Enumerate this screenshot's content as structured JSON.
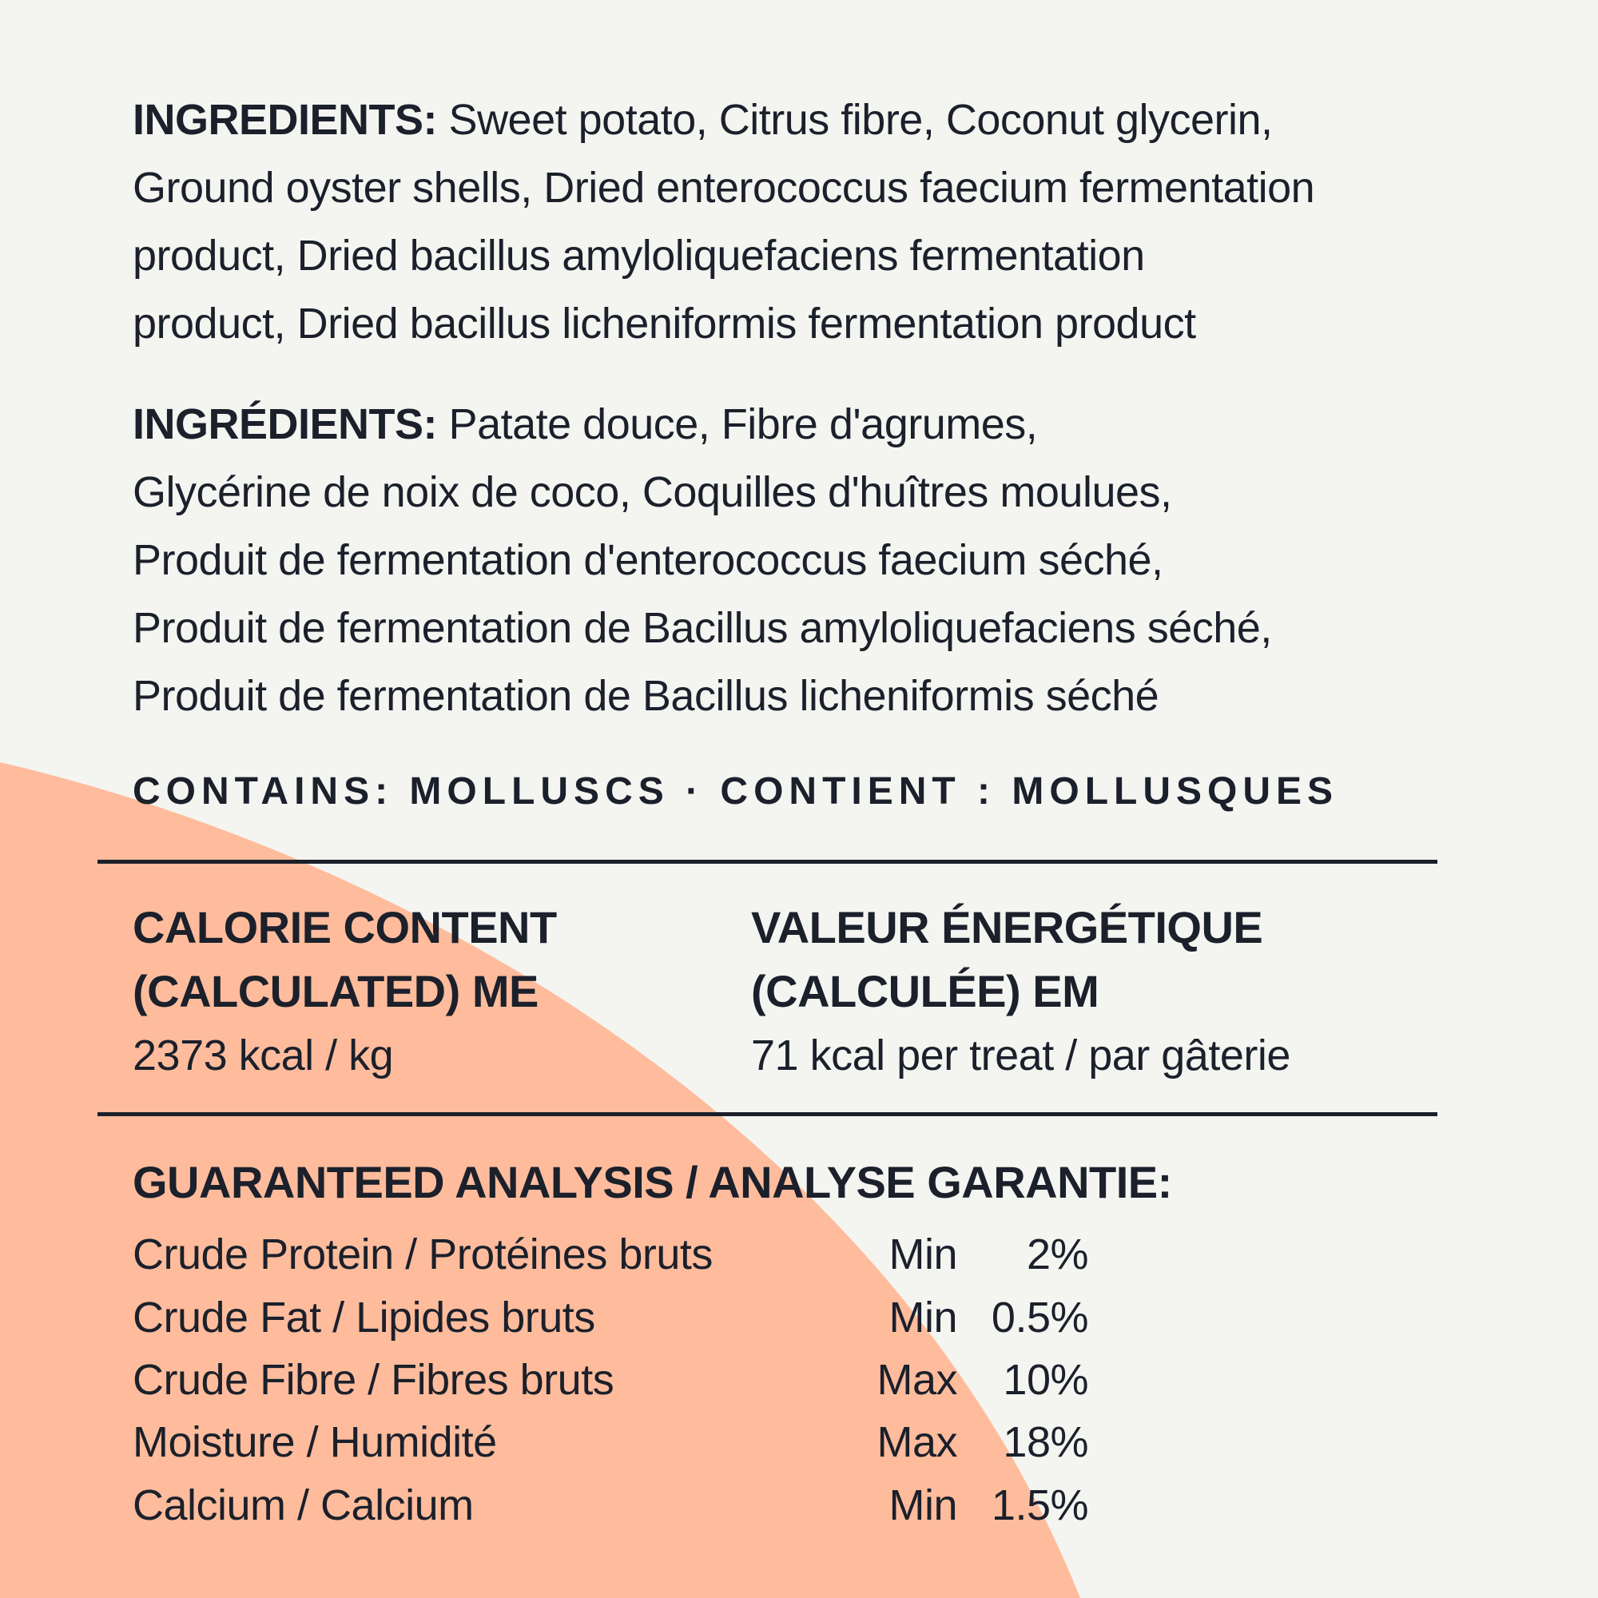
{
  "colors": {
    "background": "#F4F5F1",
    "accent_shape": "#FFBC9C",
    "text": "#1B202B"
  },
  "ingredients_en": {
    "label": "INGREDIENTS:",
    "lines": [
      "Sweet potato, Citrus fibre, Coconut glycerin,",
      "Ground oyster shells, Dried enterococcus faecium fermentation",
      "product, Dried bacillus amyloliquefaciens fermentation",
      "product, Dried bacillus licheniformis fermentation product"
    ]
  },
  "ingredients_fr": {
    "label": "INGRÉDIENTS:",
    "lines": [
      "Patate douce, Fibre d'agrumes,",
      "Glycérine de noix de coco, Coquilles d'huîtres moulues,",
      "Produit de fermentation d'enterococcus faecium séché,",
      "Produit de fermentation de Bacillus amyloliquefaciens séché,",
      "Produit de fermentation de Bacillus licheniformis séché"
    ]
  },
  "contains": "CONTAINS: MOLLUSCS · CONTIENT : MOLLUSQUES",
  "calorie": {
    "en": {
      "line1": "CALORIE CONTENT",
      "line2": "(CALCULATED) ME",
      "value": "2373 kcal / kg"
    },
    "fr": {
      "line1": "VALEUR ÉNERGÉTIQUE",
      "line2": "(CALCULÉE) EM",
      "value": "71 kcal per treat / par gâterie"
    }
  },
  "analysis": {
    "title": "GUARANTEED ANALYSIS / ANALYSE GARANTIE:",
    "rows": [
      {
        "label": "Crude Protein / Protéines bruts",
        "qualifier": "Min",
        "value": "2%"
      },
      {
        "label": "Crude Fat / Lipides bruts",
        "qualifier": "Min",
        "value": "0.5%"
      },
      {
        "label": "Crude Fibre / Fibres bruts",
        "qualifier": "Max",
        "value": "10%"
      },
      {
        "label": "Moisture / Humidité",
        "qualifier": "Max",
        "value": "18%"
      },
      {
        "label": "Calcium / Calcium",
        "qualifier": "Min",
        "value": "1.5%"
      }
    ]
  }
}
